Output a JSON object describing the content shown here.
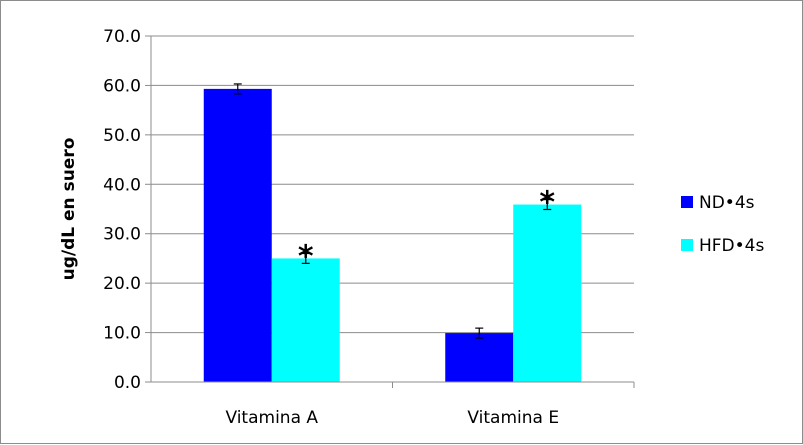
{
  "chart_data": {
    "type": "bar",
    "title": "",
    "xlabel": "",
    "ylabel": "ug/dL en suero",
    "ylim": [
      0,
      70
    ],
    "yticks": [
      "0.0",
      "10.0",
      "20.0",
      "30.0",
      "40.0",
      "50.0",
      "60.0",
      "70.0"
    ],
    "grid": true,
    "legend_position": "right",
    "categories": [
      "Vitamina A",
      "Vitamina E"
    ],
    "series": [
      {
        "name": "ND•4s",
        "color": "#0000ff",
        "values": [
          59.3,
          9.9
        ],
        "errors": [
          1.0,
          1.0
        ],
        "annotations": [
          "",
          ""
        ]
      },
      {
        "name": "HFD•4s",
        "color": "#00ffff",
        "values": [
          25.0,
          35.9
        ],
        "errors": [
          1.0,
          1.0
        ],
        "annotations": [
          "*",
          "*"
        ]
      }
    ]
  }
}
